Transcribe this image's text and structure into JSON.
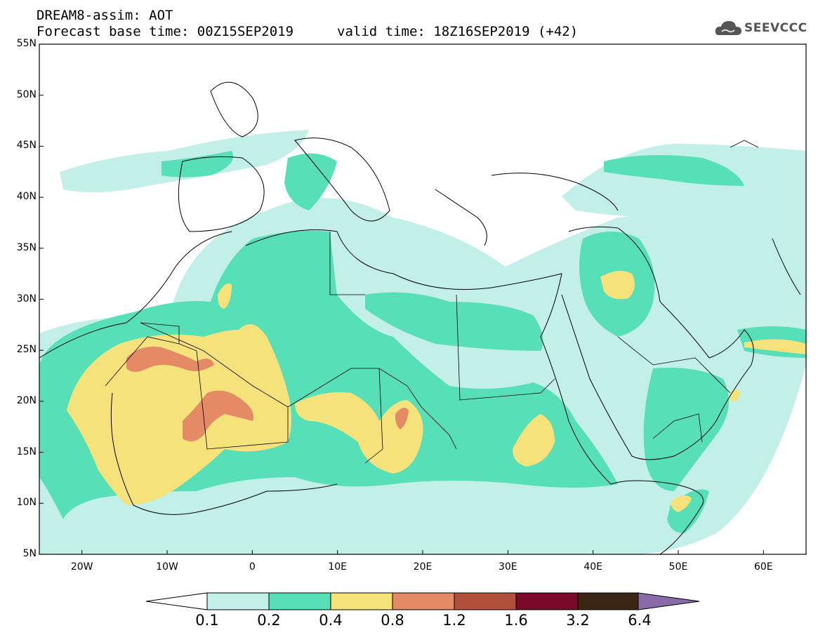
{
  "header": {
    "title": "DREAM8-assim: AOT",
    "base_time": "Forecast base time: 00Z15SEP2019",
    "valid_time": "valid time: 18Z16SEP2019 (+42)"
  },
  "logo": {
    "text": "SEEVCCC",
    "icon": "cloud-icon"
  },
  "map": {
    "lat_labels": [
      "55N",
      "50N",
      "45N",
      "40N",
      "35N",
      "30N",
      "25N",
      "20N",
      "15N",
      "10N",
      "5N"
    ],
    "lon_labels": [
      "20W",
      "10W",
      "0",
      "10E",
      "20E",
      "30E",
      "40E",
      "50E",
      "60E"
    ],
    "extent": {
      "lon_min": -25,
      "lon_max": 65,
      "lat_min": 5,
      "lat_max": 55
    }
  },
  "colorbar": {
    "labels": [
      "0.1",
      "0.2",
      "0.4",
      "0.8",
      "1.2",
      "1.6",
      "3.2",
      "6.4"
    ],
    "colors": [
      "#ffffff",
      "#c3efe9",
      "#57dfb8",
      "#f6e27a",
      "#e48a64",
      "#b04f3a",
      "#7a0a2a",
      "#3c2512",
      "#8a6aa8"
    ]
  }
}
